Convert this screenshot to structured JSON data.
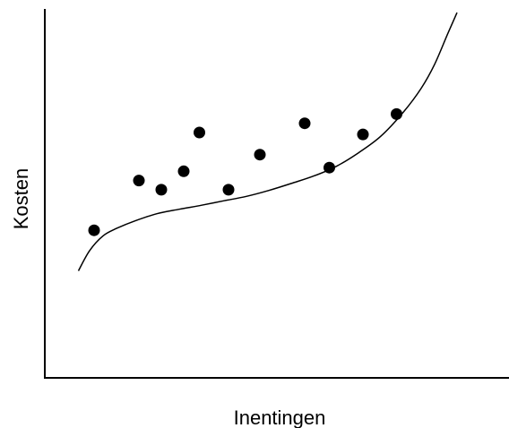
{
  "chart_data": {
    "type": "scatter",
    "title": "",
    "xlabel": "Inentingen",
    "ylabel": "Kosten",
    "grid": false,
    "legend": "none",
    "xlim": [
      0,
      100
    ],
    "ylim": [
      0,
      100
    ],
    "points": [
      {
        "x": 11,
        "y": 40
      },
      {
        "x": 21,
        "y": 53.5
      },
      {
        "x": 26,
        "y": 51
      },
      {
        "x": 31,
        "y": 56
      },
      {
        "x": 34.5,
        "y": 66.5
      },
      {
        "x": 41,
        "y": 51
      },
      {
        "x": 48,
        "y": 60.5
      },
      {
        "x": 58,
        "y": 69
      },
      {
        "x": 63.5,
        "y": 57
      },
      {
        "x": 71,
        "y": 66
      },
      {
        "x": 78.5,
        "y": 71.5
      }
    ],
    "curve": {
      "name": "",
      "x": [
        7.5,
        10,
        13,
        16,
        20,
        25,
        30,
        35,
        40,
        45,
        50,
        55,
        60,
        65,
        70,
        75,
        80,
        84,
        87,
        90,
        92
      ],
      "y": [
        29,
        34.5,
        38.5,
        40.5,
        42.5,
        44.5,
        45.7,
        46.8,
        48,
        49.2,
        50.8,
        52.7,
        54.7,
        57.3,
        61,
        65.5,
        72,
        78.5,
        85,
        93.5,
        99
      ]
    },
    "colors": {
      "points": "#000000",
      "curve": "#000000",
      "axes": "#000000"
    }
  }
}
